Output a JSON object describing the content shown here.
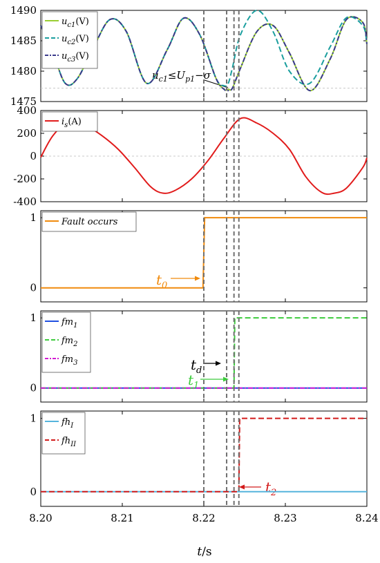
{
  "chart_data": [
    {
      "type": "line",
      "xlim": [
        8.2,
        8.24
      ],
      "ylim": [
        1475,
        1490
      ],
      "yticks": [
        "1475",
        "1480",
        "1485",
        "1490"
      ],
      "legend_position": "top-left",
      "series": [
        {
          "name": "u_c1(V)",
          "color": "#9ACD32",
          "style": "solid",
          "x": [
            8.2,
            8.2015,
            8.203,
            8.2045,
            8.2065,
            8.2085,
            8.2105,
            8.213,
            8.2155,
            8.2175,
            8.2195,
            8.2215,
            8.2225,
            8.223,
            8.2235,
            8.2245,
            8.2265,
            8.2285,
            8.2305,
            8.233,
            8.2355,
            8.2375,
            8.2395,
            8.24
          ],
          "y": [
            1487.5,
            1483.0,
            1478.0,
            1478.8,
            1484.0,
            1488.5,
            1486.5,
            1478.0,
            1483.5,
            1488.7,
            1486.0,
            1478.8,
            1477.0,
            1477.0,
            1477.2,
            1480.5,
            1486.5,
            1487.5,
            1483.0,
            1476.8,
            1482.0,
            1488.5,
            1488.0,
            1484.5
          ]
        },
        {
          "name": "u_c2(V)",
          "color": "#1A9E9E",
          "style": "dashed",
          "x": [
            8.2,
            8.2015,
            8.203,
            8.2045,
            8.2065,
            8.2085,
            8.2105,
            8.213,
            8.2155,
            8.2175,
            8.2195,
            8.2215,
            8.2225,
            8.223,
            8.2235,
            8.2245,
            8.2265,
            8.2285,
            8.2305,
            8.233,
            8.2355,
            8.2375,
            8.2395,
            8.24
          ],
          "y": [
            1487.5,
            1483.0,
            1478.0,
            1478.8,
            1484.0,
            1488.5,
            1486.5,
            1478.0,
            1483.5,
            1488.7,
            1486.0,
            1478.8,
            1477.6,
            1478.0,
            1480.5,
            1486.0,
            1490.0,
            1486.5,
            1480.0,
            1478.0,
            1484.0,
            1488.8,
            1487.5,
            1484.5
          ]
        },
        {
          "name": "u_c3(V)",
          "color": "#3A3A8C",
          "style": "dashdot",
          "x": [
            8.2,
            8.2015,
            8.203,
            8.2045,
            8.2065,
            8.2085,
            8.2105,
            8.213,
            8.2155,
            8.2175,
            8.2195,
            8.2215,
            8.2225,
            8.223,
            8.2235,
            8.2245,
            8.2265,
            8.2285,
            8.2305,
            8.233,
            8.2355,
            8.2375,
            8.2395,
            8.24
          ],
          "y": [
            1487.5,
            1483.0,
            1478.0,
            1478.8,
            1484.0,
            1488.5,
            1486.5,
            1478.0,
            1483.5,
            1488.7,
            1486.0,
            1478.8,
            1477.0,
            1476.8,
            1477.2,
            1480.5,
            1486.5,
            1487.5,
            1483.0,
            1476.8,
            1482.0,
            1488.5,
            1488.0,
            1484.5
          ]
        }
      ],
      "threshold": 1477.2,
      "annotation": {
        "base": "u",
        "sub": "c1",
        "op": "≤",
        "base2": "U",
        "sub2": "p1",
        "rest": "−σ"
      }
    },
    {
      "type": "line",
      "xlim": [
        8.2,
        8.24
      ],
      "ylim": [
        -400,
        400
      ],
      "yticks": [
        "-400",
        "-200",
        "0",
        "200",
        "400"
      ],
      "legend_position": "top-left",
      "series": [
        {
          "name": "i_s(A)",
          "color": "#E11B1B",
          "style": "solid",
          "x": [
            8.2,
            8.2015,
            8.2035,
            8.2055,
            8.2075,
            8.2095,
            8.2115,
            8.2135,
            8.215,
            8.2165,
            8.2185,
            8.2205,
            8.2225,
            8.2245,
            8.2265,
            8.2285,
            8.2305,
            8.2325,
            8.2345,
            8.236,
            8.2375,
            8.2395,
            8.24
          ],
          "y": [
            -10,
            180,
            310,
            270,
            180,
            60,
            -100,
            -270,
            -325,
            -300,
            -200,
            -40,
            160,
            330,
            290,
            200,
            60,
            -180,
            -320,
            -325,
            -280,
            -100,
            -15
          ]
        }
      ]
    },
    {
      "type": "line",
      "xlim": [
        8.2,
        8.24
      ],
      "ylim": [
        -0.2,
        1.1
      ],
      "yticks": [
        "0",
        "1"
      ],
      "legend_position": "top-left",
      "series": [
        {
          "name": "Fault occurs",
          "color": "#F08A0C",
          "style": "solid",
          "x": [
            8.2,
            8.2199,
            8.2201,
            8.24
          ],
          "y": [
            0,
            0,
            1,
            1
          ]
        }
      ],
      "annotation": {
        "base": "t",
        "sub": "0",
        "color": "#F08A0C"
      }
    },
    {
      "type": "line",
      "xlim": [
        8.2,
        8.24
      ],
      "ylim": [
        -0.2,
        1.1
      ],
      "yticks": [
        "0",
        "1"
      ],
      "legend_position": "top-left",
      "series": [
        {
          "name": "fm_1",
          "color": "#1F4FE0",
          "style": "solid",
          "x": [
            8.2,
            8.24
          ],
          "y": [
            0,
            0
          ]
        },
        {
          "name": "fm_2",
          "color": "#3CCB3C",
          "style": "dashed",
          "x": [
            8.2,
            8.2237,
            8.2238,
            8.24
          ],
          "y": [
            0,
            0,
            1,
            1
          ]
        },
        {
          "name": "fm_3",
          "color": "#D21AD2",
          "style": "dashdot",
          "x": [
            8.2,
            8.24
          ],
          "y": [
            0,
            0
          ]
        }
      ],
      "annotations": [
        {
          "base": "t",
          "sub": "d",
          "color": "#000000"
        },
        {
          "base": "t",
          "sub": "1",
          "color": "#3CCB3C"
        }
      ]
    },
    {
      "type": "line",
      "xlim": [
        8.2,
        8.24
      ],
      "ylim": [
        -0.2,
        1.1
      ],
      "yticks": [
        "0",
        "1"
      ],
      "xticks": [
        "8.20",
        "8.21",
        "8.22",
        "8.23",
        "8.24"
      ],
      "xlabel": "t/s",
      "legend_position": "top-left",
      "series": [
        {
          "name": "fh_I",
          "color": "#55B4DC",
          "style": "solid",
          "x": [
            8.2,
            8.24
          ],
          "y": [
            0,
            0
          ]
        },
        {
          "name": "fh_II",
          "color": "#D21A1A",
          "style": "dashed",
          "x": [
            8.2,
            8.2243,
            8.2244,
            8.24
          ],
          "y": [
            0,
            0,
            1,
            1
          ]
        }
      ],
      "annotation": {
        "base": "t",
        "sub": "2",
        "color": "#D21A1A"
      }
    }
  ],
  "event_times": [
    8.22,
    8.2228,
    8.2237,
    8.2243
  ],
  "xlabel": {
    "base": "t",
    "rest": "/s"
  }
}
